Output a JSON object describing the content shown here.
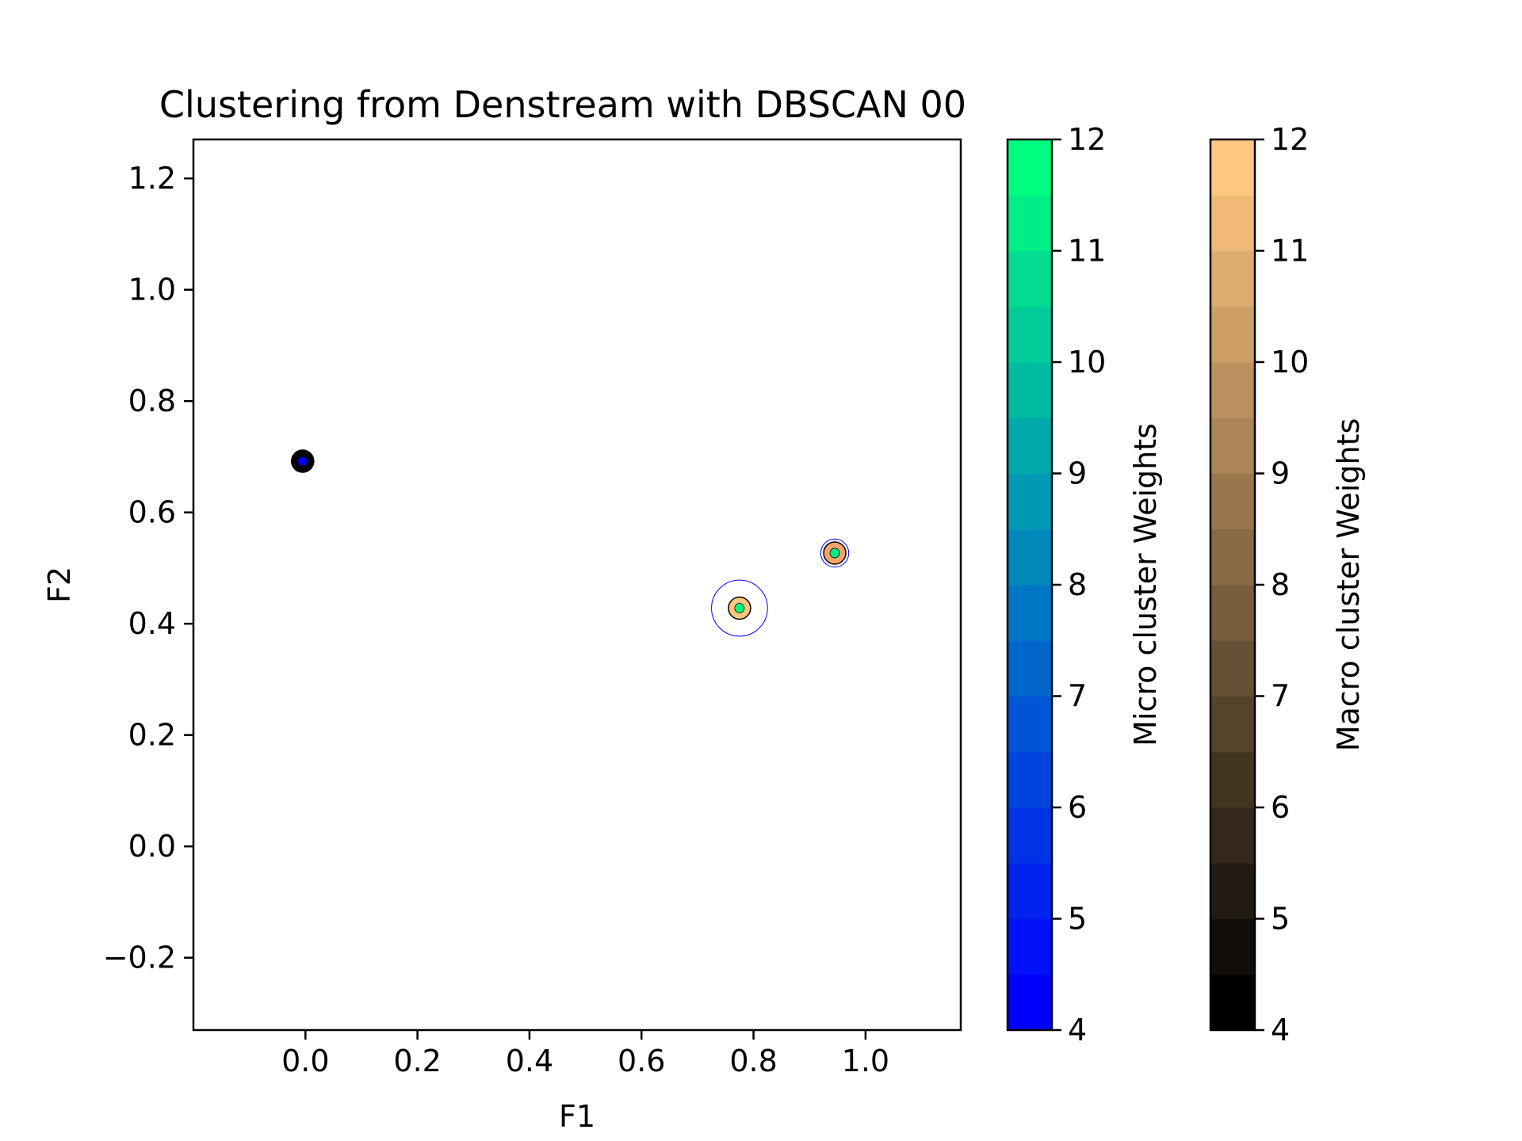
{
  "chart_data": {
    "type": "scatter",
    "title": "Clustering from Denstream with DBSCAN 00",
    "xlabel": "F1",
    "ylabel": "F2",
    "xlim": [
      -0.2,
      1.17
    ],
    "ylim": [
      -0.33,
      1.27
    ],
    "xticks": [
      0.0,
      0.2,
      0.4,
      0.6,
      0.8,
      1.0
    ],
    "yticks": [
      -0.2,
      0.0,
      0.2,
      0.4,
      0.6,
      0.8,
      1.0,
      1.2
    ],
    "xtick_labels": [
      "0.0",
      "0.2",
      "0.4",
      "0.6",
      "0.8",
      "1.0"
    ],
    "ytick_labels": [
      "−0.2",
      "0.0",
      "0.2",
      "0.4",
      "0.6",
      "0.8",
      "1.0",
      "1.2"
    ],
    "grid": false,
    "macro_clusters": [
      {
        "x": -0.005,
        "y": 0.692,
        "weight": 4.2,
        "color": "#000000",
        "radius": 0.02
      },
      {
        "x": 0.775,
        "y": 0.428,
        "weight": 12.0,
        "color": "#ffc47d",
        "radius": 0.05
      },
      {
        "x": 0.945,
        "y": 0.527,
        "weight": 10.6,
        "color": "#f3a56c",
        "radius": 0.025
      }
    ],
    "micro_clusters": [
      {
        "x": -0.005,
        "y": 0.692,
        "weight": 4.2,
        "color": "#0000ff"
      },
      {
        "x": 0.775,
        "y": 0.428,
        "weight": 12.0,
        "color": "#00ff80"
      },
      {
        "x": 0.945,
        "y": 0.527,
        "weight": 11.6,
        "color": "#00ee85"
      }
    ],
    "colorbars": [
      {
        "label": "Micro cluster Weights",
        "colormap": "winter",
        "range": [
          4,
          12
        ],
        "ticks": [
          4,
          5,
          6,
          7,
          8,
          9,
          10,
          11,
          12
        ],
        "tick_labels": [
          "4",
          "5",
          "6",
          "7",
          "8",
          "9",
          "10",
          "11",
          "12"
        ],
        "color_low": "#0000ff",
        "color_high": "#00ff80",
        "levels": 16
      },
      {
        "label": "Macro cluster Weights",
        "colormap": "copper",
        "range": [
          4,
          12
        ],
        "ticks": [
          4,
          5,
          6,
          7,
          8,
          9,
          10,
          11,
          12
        ],
        "tick_labels": [
          "4",
          "5",
          "6",
          "7",
          "8",
          "9",
          "10",
          "11",
          "12"
        ],
        "color_low": "#000000",
        "color_high": "#ffc77f",
        "levels": 16
      }
    ]
  }
}
